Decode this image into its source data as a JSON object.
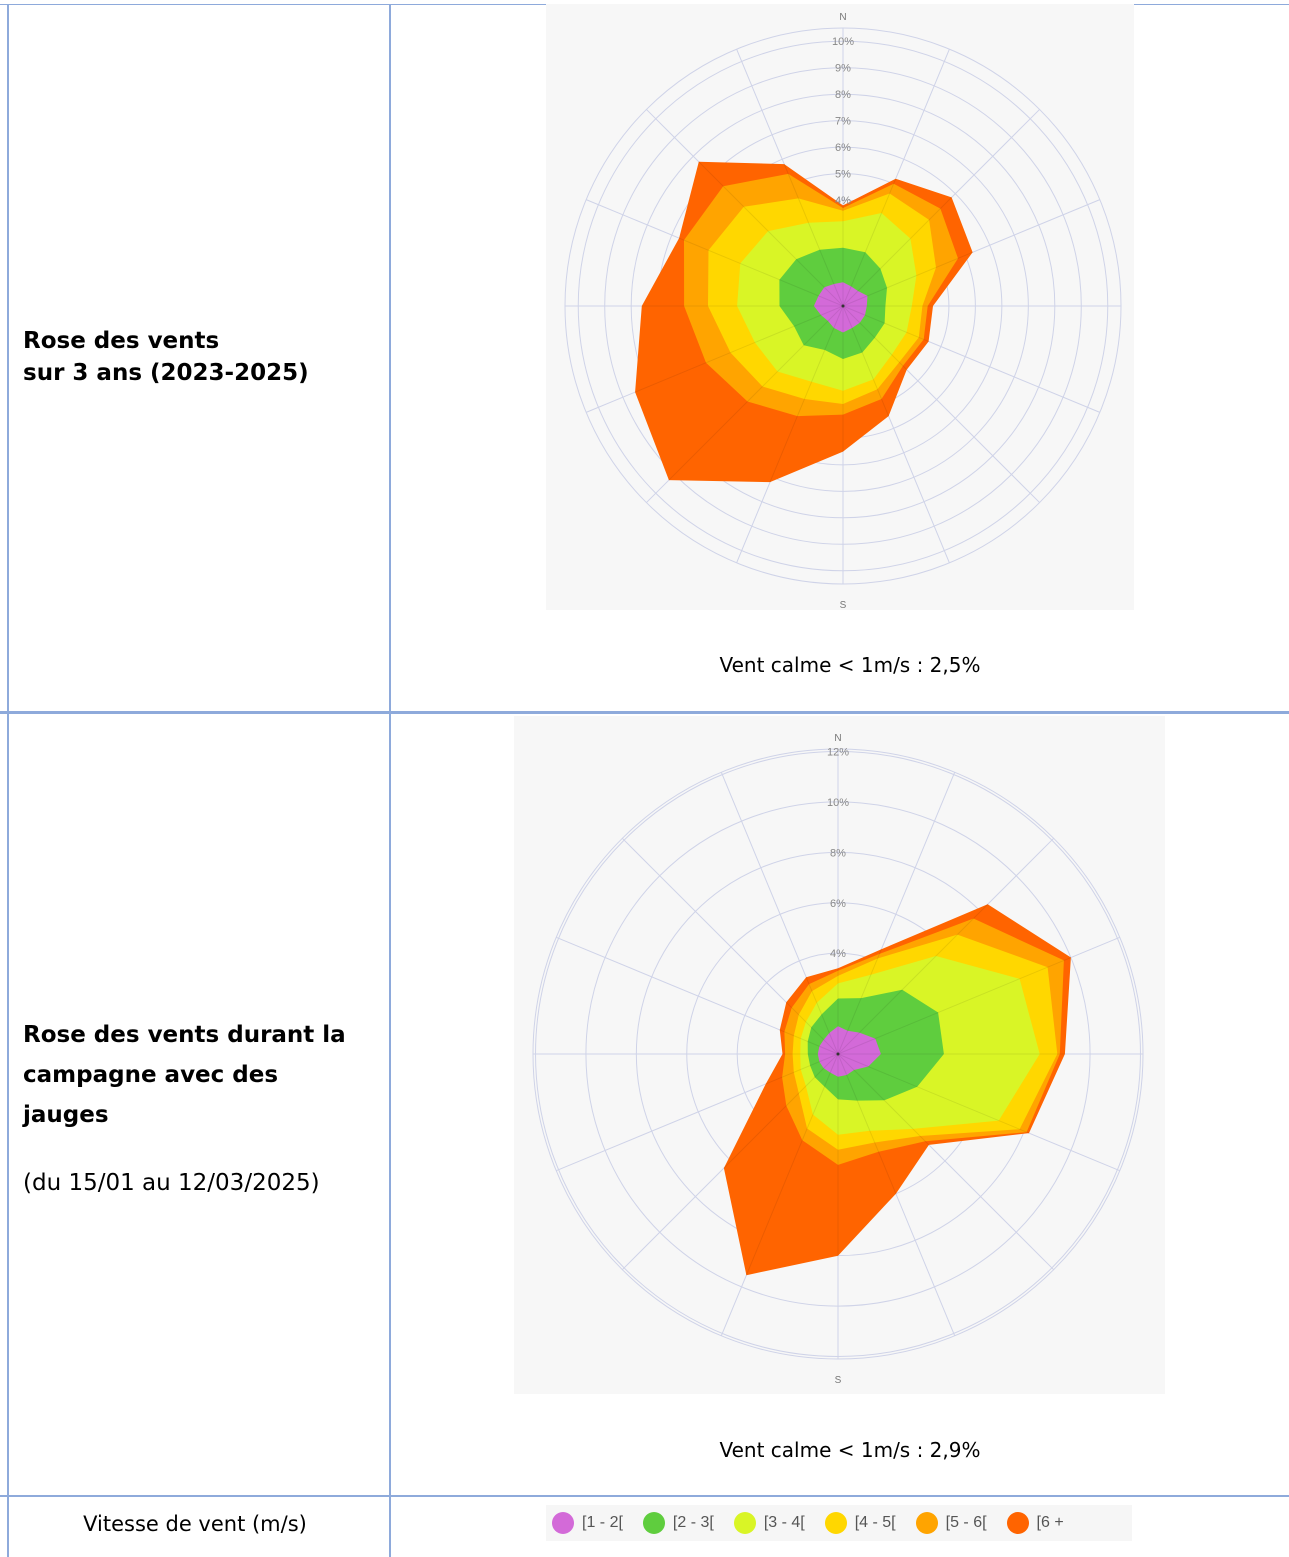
{
  "rows": [
    {
      "title_lines": [
        "Rose des vents",
        "sur 3 ans (2023-2025)"
      ],
      "subtitle": "",
      "calm_text": "Vent calme < 1m/s : 2,5%"
    },
    {
      "title_lines": [
        "Rose des vents durant la",
        "campagne avec des",
        "jauges"
      ],
      "subtitle": "(du 15/01 au 12/03/2025)",
      "calm_text": "Vent calme < 1m/s : 2,9%"
    }
  ],
  "legend": {
    "label": "Vitesse de vent (m/s)",
    "items": [
      {
        "label": "[1 - 2[",
        "color": "#d36ad8"
      },
      {
        "label": "[2 - 3[",
        "color": "#5fcd3e"
      },
      {
        "label": "[3 - 4[",
        "color": "#d9f526"
      },
      {
        "label": "[4 - 5[",
        "color": "#ffd700"
      },
      {
        "label": "[5 - 6[",
        "color": "#ffa400"
      },
      {
        "label": "[6 +",
        "color": "#ff6400"
      }
    ]
  },
  "chart_data": [
    {
      "type": "radar",
      "north_label": "N",
      "south_label": "S",
      "radial_ticks": [
        "4%",
        "5%",
        "6%",
        "7%",
        "8%",
        "9%",
        "10%"
      ],
      "radial_max": 10.5,
      "rings": [
        1,
        2,
        3,
        4,
        5,
        6,
        7,
        8,
        9,
        10
      ],
      "directions": 16,
      "series": [
        {
          "name": "[1 - 2[",
          "values": [
            0.9,
            0.8,
            0.8,
            1.0,
            0.9,
            0.9,
            0.9,
            0.9,
            1.0,
            0.9,
            0.8,
            0.9,
            1.1,
            1.0,
            1.0,
            0.9
          ]
        },
        {
          "name": "[2 - 3[",
          "values": [
            2.2,
            2.2,
            2.0,
            1.8,
            1.6,
            1.7,
            1.7,
            1.9,
            2.0,
            1.8,
            2.1,
            2.0,
            2.4,
            2.6,
            2.5,
            2.3
          ]
        },
        {
          "name": "[3 - 4[",
          "values": [
            3.2,
            3.8,
            3.6,
            3.0,
            2.6,
            2.6,
            2.6,
            3.0,
            3.2,
            3.1,
            3.5,
            3.6,
            4.0,
            4.2,
            4.0,
            3.4
          ]
        },
        {
          "name": "[4 - 5[",
          "values": [
            3.6,
            4.6,
            4.6,
            3.8,
            3.0,
            3.1,
            3.0,
            3.4,
            3.7,
            3.8,
            4.3,
            4.6,
            5.1,
            5.5,
            5.3,
            4.4
          ]
        },
        {
          "name": "[5 - 6[",
          "values": [
            3.7,
            5.0,
            5.2,
            4.7,
            3.2,
            3.3,
            3.2,
            3.8,
            4.1,
            4.5,
            5.1,
            5.6,
            6.0,
            6.5,
            6.4,
            5.4
          ]
        },
        {
          "name": "[6 +",
          "values": [
            3.8,
            5.2,
            5.8,
            5.3,
            3.4,
            3.5,
            3.4,
            4.5,
            5.5,
            7.2,
            9.3,
            8.5,
            7.6,
            6.7,
            7.7,
            5.8
          ]
        }
      ]
    },
    {
      "type": "radar",
      "north_label": "N",
      "south_label": "S",
      "radial_ticks": [
        "4%",
        "6%",
        "8%",
        "10%",
        "12%"
      ],
      "radial_max": 12.1,
      "rings": [
        2,
        4,
        6,
        8,
        10,
        12
      ],
      "directions": 16,
      "series": [
        {
          "name": "[1 - 2[",
          "values": [
            1.1,
            1.0,
            1.2,
            1.6,
            1.7,
            1.3,
            0.9,
            0.9,
            0.9,
            0.8,
            0.8,
            0.8,
            0.8,
            0.8,
            0.8,
            0.9
          ]
        },
        {
          "name": "[2 - 3[",
          "values": [
            2.2,
            2.4,
            3.6,
            4.3,
            4.2,
            3.4,
            2.6,
            2.0,
            1.8,
            1.4,
            1.3,
            1.2,
            1.2,
            1.3,
            1.5,
            1.7
          ]
        },
        {
          "name": "[3 - 4[",
          "values": [
            2.8,
            3.4,
            5.5,
            7.8,
            8.0,
            6.9,
            4.2,
            3.3,
            3.2,
            2.6,
            1.8,
            1.6,
            1.5,
            1.6,
            1.8,
            2.2
          ]
        },
        {
          "name": "[4 - 5[",
          "values": [
            3.1,
            4.1,
            6.7,
            9.0,
            8.7,
            7.8,
            4.6,
            3.8,
            3.8,
            3.2,
            2.2,
            1.9,
            1.8,
            1.9,
            2.2,
            2.7
          ]
        },
        {
          "name": "[5 - 6[",
          "values": [
            3.3,
            4.3,
            7.6,
            9.7,
            8.8,
            8.1,
            4.9,
            4.2,
            4.4,
            3.7,
            2.9,
            2.4,
            2.1,
            2.3,
            2.6,
            3.0
          ]
        },
        {
          "name": "[6 +",
          "values": [
            3.4,
            4.5,
            8.4,
            10.0,
            9.0,
            8.2,
            5.1,
            6.0,
            8.0,
            9.5,
            6.4,
            3.1,
            2.2,
            2.5,
            2.9,
            3.3
          ]
        }
      ]
    }
  ]
}
